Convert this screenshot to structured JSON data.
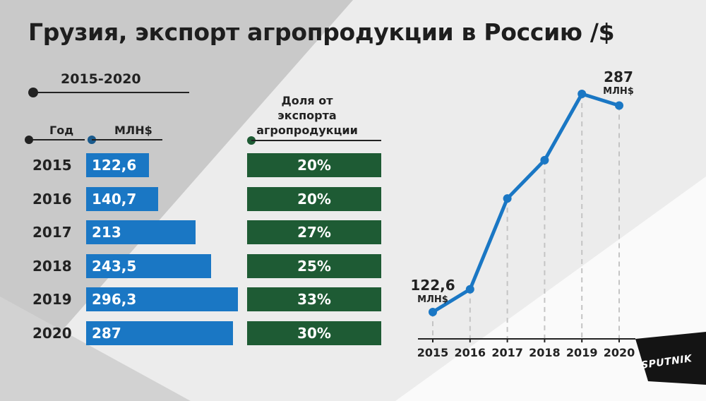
{
  "title": "Грузия, экспорт агропродукции в Россию /$",
  "period": "2015-2020",
  "columns": {
    "year": "Год",
    "value": "МЛН$",
    "share": "Доля от экспорта агропродукции"
  },
  "colors": {
    "bar": "#1a77c4",
    "share": "#1e5b34",
    "line": "#1a77c4"
  },
  "chart_data": {
    "type": "line",
    "title": "Грузия, экспорт агропродукции в Россию /$",
    "x": [
      "2015",
      "2016",
      "2017",
      "2018",
      "2019",
      "2020"
    ],
    "series": [
      {
        "name": "МЛН$",
        "values": [
          122.6,
          140.7,
          213,
          243.5,
          296.3,
          287
        ]
      }
    ],
    "ylim": [
      110,
      310
    ],
    "bar_table": {
      "years": [
        "2015",
        "2016",
        "2017",
        "2018",
        "2019",
        "2020"
      ],
      "values": [
        122.6,
        140.7,
        213,
        243.5,
        296.3,
        287
      ],
      "value_labels": [
        "122,6",
        "140,7",
        "213",
        "243,5",
        "296,3",
        "287"
      ],
      "shares": [
        "20%",
        "20%",
        "27%",
        "25%",
        "33%",
        "30%"
      ]
    },
    "annotations": {
      "start_value": "122,6",
      "end_value": "287",
      "unit": "МЛН$"
    }
  },
  "logo": "SPUTNIK"
}
